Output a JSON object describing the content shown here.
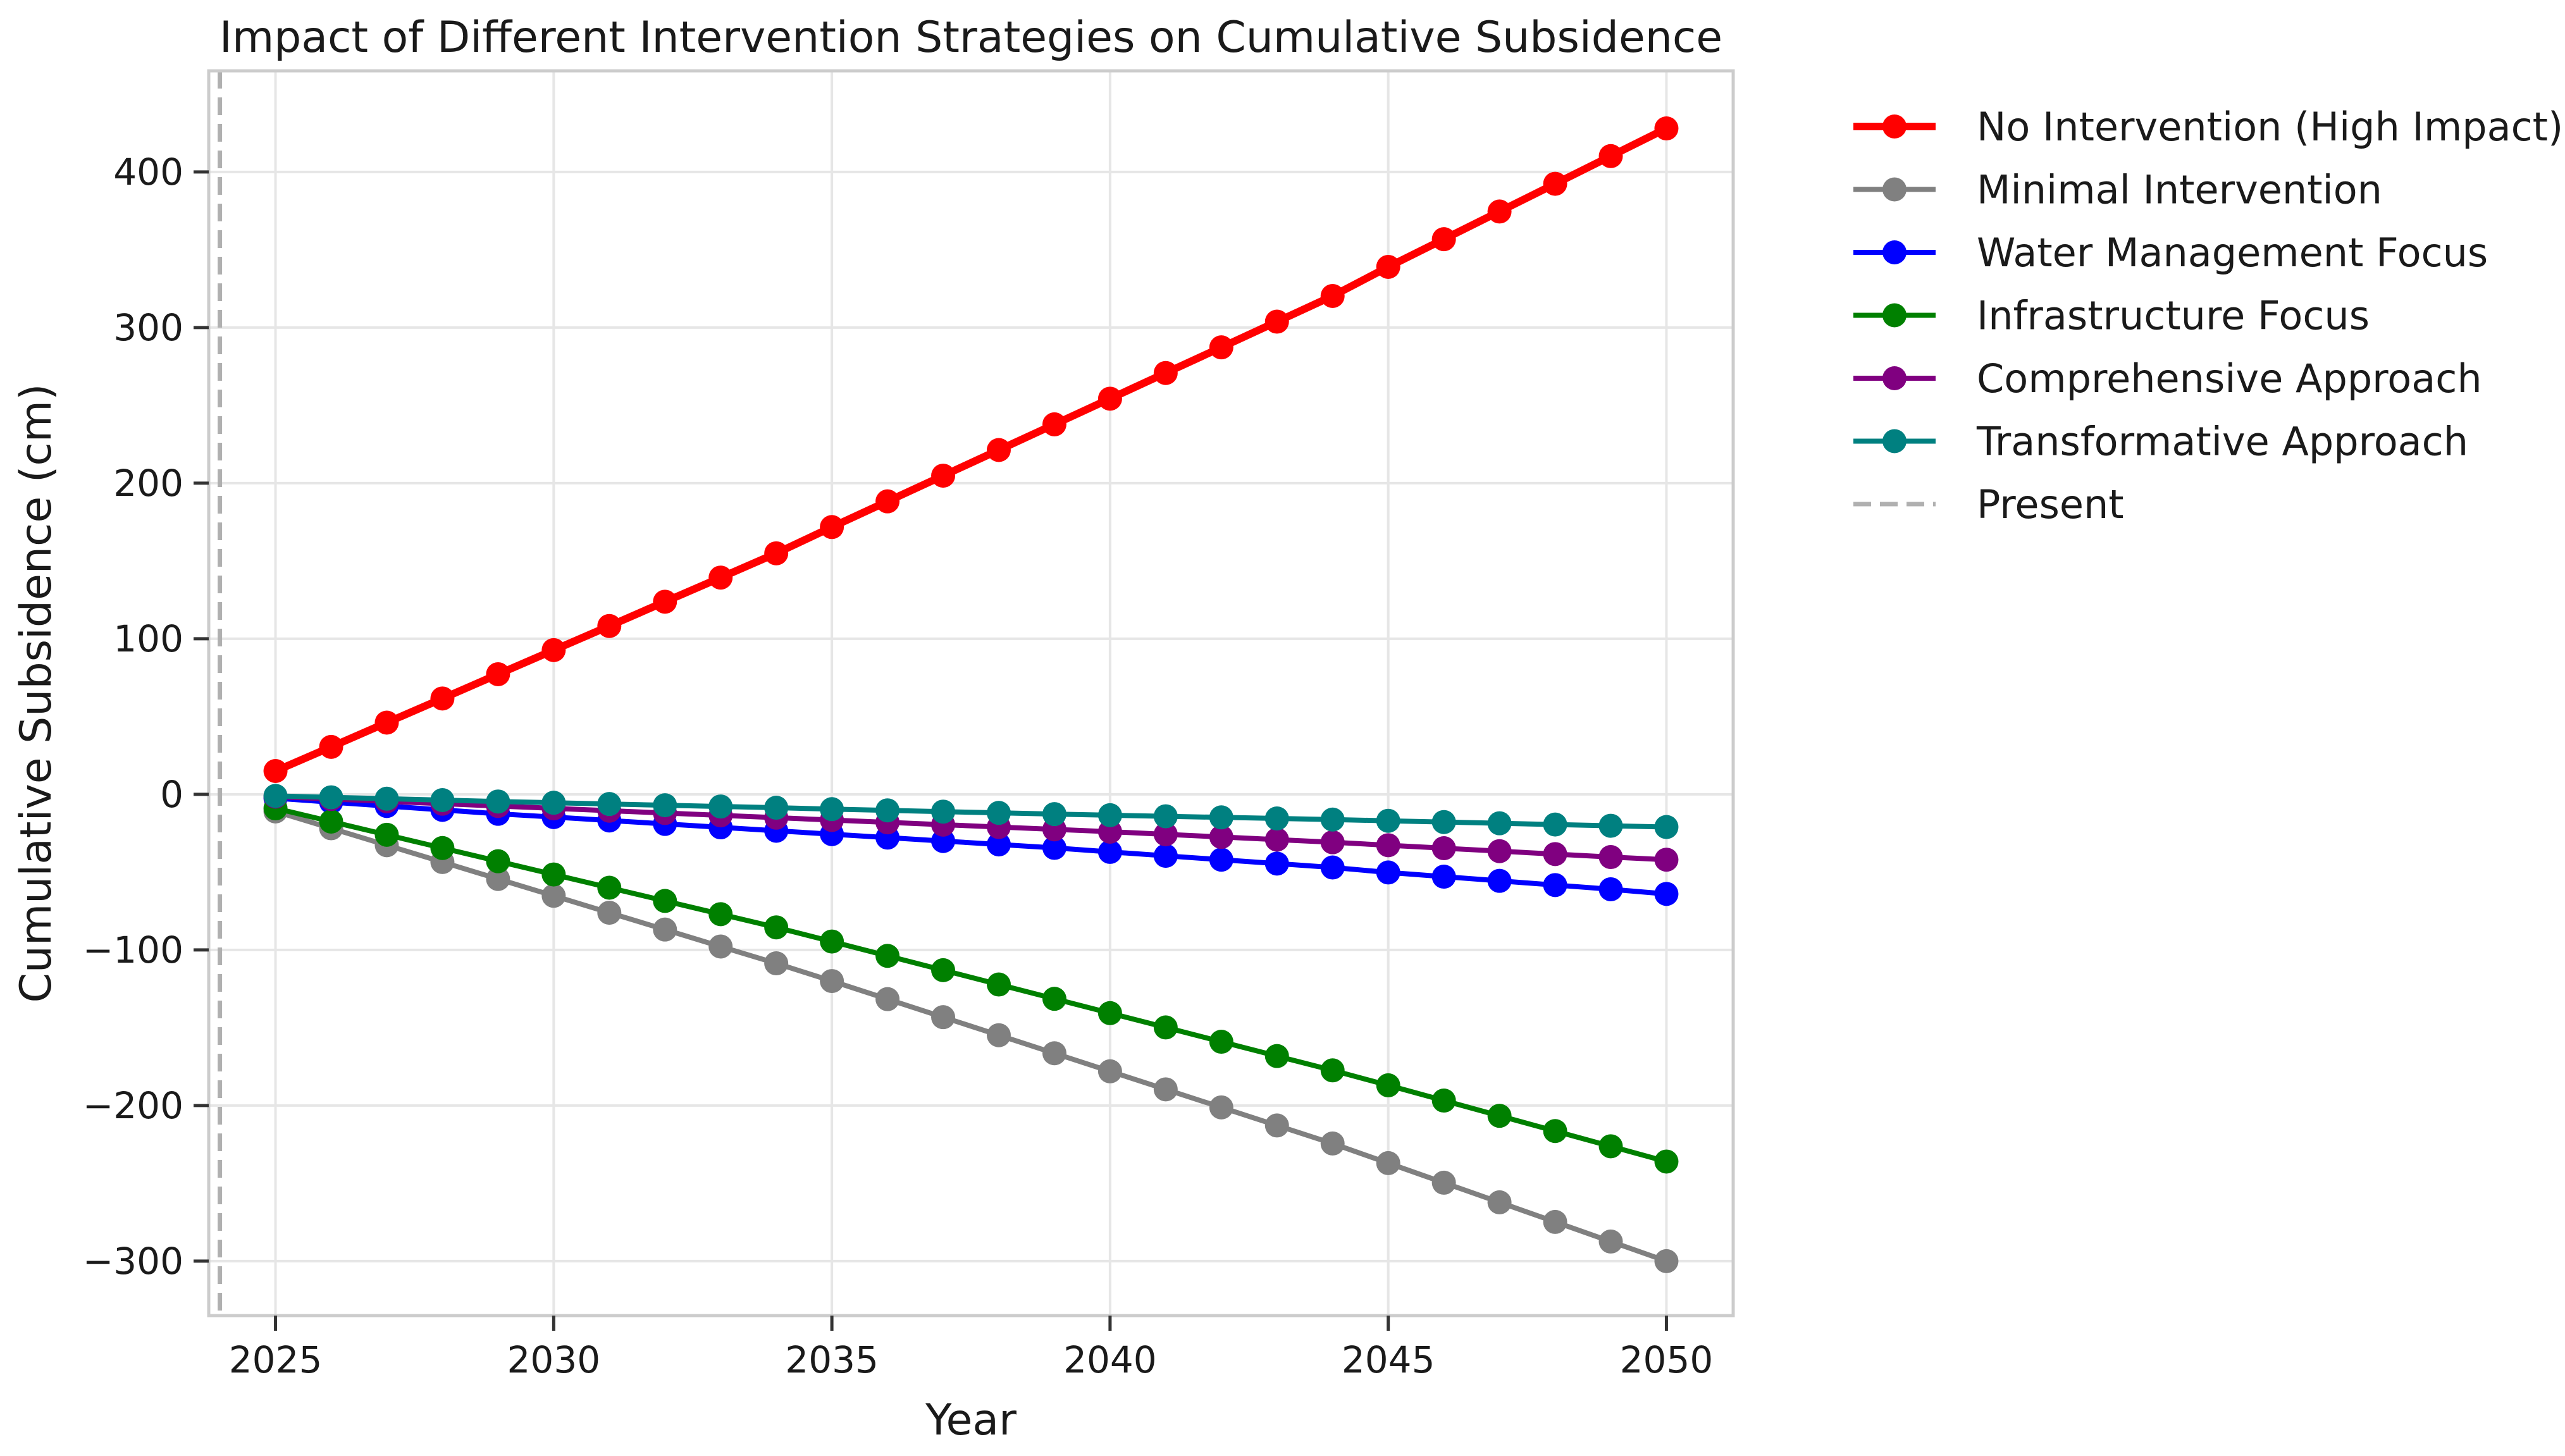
{
  "chart_data": {
    "type": "line",
    "title": "Impact of Different Intervention Strategies on Cumulative Subsidence",
    "xlabel": "Year",
    "ylabel": "Cumulative Subsidence (cm)",
    "xlim": [
      2023.8,
      2051.2
    ],
    "ylim": [
      -335,
      465
    ],
    "xticks": [
      2025,
      2030,
      2035,
      2040,
      2045,
      2050
    ],
    "yticks": [
      -300,
      -200,
      -100,
      0,
      100,
      200,
      300,
      400
    ],
    "ytick_labels": [
      "−300",
      "−200",
      "−100",
      "0",
      "100",
      "200",
      "300",
      "400"
    ],
    "grid": true,
    "legend_position": "outside-right-top",
    "x": [
      2025,
      2026,
      2027,
      2028,
      2029,
      2030,
      2031,
      2032,
      2033,
      2034,
      2035,
      2036,
      2037,
      2038,
      2039,
      2040,
      2041,
      2042,
      2043,
      2044,
      2045,
      2046,
      2047,
      2048,
      2049,
      2050
    ],
    "series": [
      {
        "name": "No Intervention (High Impact)",
        "color": "#ff0000",
        "highlight": true,
        "values": [
          15,
          30.5,
          46.1,
          61.6,
          77.2,
          92.7,
          108.2,
          123.8,
          139.3,
          154.9,
          171.8,
          188.3,
          204.8,
          221.3,
          237.8,
          254.3,
          270.8,
          287.3,
          303.8,
          320.3,
          339.0,
          356.8,
          374.6,
          392.4,
          410.2,
          428
        ]
      },
      {
        "name": "Minimal Intervention",
        "color": "#808080",
        "values": [
          -11,
          -21.8,
          -32.7,
          -43.5,
          -54.4,
          -65.2,
          -76.1,
          -86.9,
          -97.8,
          -108.6,
          -120,
          -131.6,
          -143.2,
          -154.8,
          -166.4,
          -178,
          -189.6,
          -201.2,
          -212.8,
          -224.4,
          -237,
          -249.6,
          -262.2,
          -274.8,
          -287.4,
          -300
        ]
      },
      {
        "name": "Water Management Focus",
        "color": "#0000ff",
        "values": [
          -2.5,
          -5,
          -7.5,
          -10,
          -12.5,
          -14.6,
          -16.8,
          -19,
          -21.2,
          -23.4,
          -25.6,
          -27.8,
          -30,
          -32.2,
          -34.4,
          -37,
          -39.5,
          -42,
          -44.5,
          -47,
          -50.2,
          -52.9,
          -55.6,
          -58.3,
          -61,
          -64
        ]
      },
      {
        "name": "Infrastructure Focus",
        "color": "#008000",
        "values": [
          -9,
          -17.5,
          -26,
          -34.5,
          -43,
          -51.5,
          -60,
          -68.5,
          -77,
          -85.5,
          -94.6,
          -103.8,
          -113,
          -122.2,
          -131.4,
          -140.6,
          -149.8,
          -159,
          -168.2,
          -177.4,
          -187,
          -196.8,
          -206.6,
          -216.4,
          -226.2,
          -236
        ]
      },
      {
        "name": "Comprehensive Approach",
        "color": "#800080",
        "values": [
          -1.5,
          -3,
          -4.5,
          -6,
          -7.5,
          -9,
          -10.5,
          -12,
          -13.5,
          -15,
          -16.5,
          -18,
          -19.5,
          -21,
          -22.5,
          -24,
          -25.7,
          -27.4,
          -29.1,
          -30.8,
          -32.7,
          -34.6,
          -36.5,
          -38.4,
          -40.3,
          -42
        ]
      },
      {
        "name": "Transformative Approach",
        "color": "#008080",
        "values": [
          -1,
          -1.9,
          -2.8,
          -3.7,
          -4.6,
          -5.4,
          -6.2,
          -7,
          -7.8,
          -8.6,
          -9.5,
          -10.3,
          -11.1,
          -11.9,
          -12.7,
          -13.4,
          -14.1,
          -14.8,
          -15.5,
          -16.2,
          -17,
          -17.8,
          -18.6,
          -19.4,
          -20.2,
          -21
        ]
      }
    ],
    "reference_line": {
      "name": "Present",
      "x": 2024,
      "style": "dashed",
      "color": "#b0b0b0"
    }
  }
}
